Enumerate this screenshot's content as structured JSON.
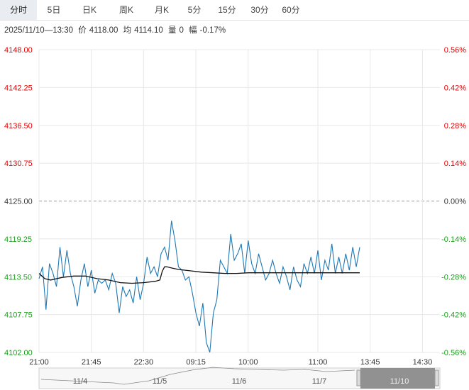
{
  "tabs": [
    {
      "label": "分时",
      "active": true
    },
    {
      "label": "5日",
      "active": false
    },
    {
      "label": "日K",
      "active": false
    },
    {
      "label": "周K",
      "active": false
    },
    {
      "label": "月K",
      "active": false
    },
    {
      "label": "5分",
      "active": false
    },
    {
      "label": "15分",
      "active": false
    },
    {
      "label": "30分",
      "active": false
    },
    {
      "label": "60分",
      "active": false
    }
  ],
  "info": {
    "datetime": "2025/11/10—13:30",
    "price_label": "价",
    "price": "4118.00",
    "avg_label": "均",
    "avg": "4114.10",
    "vol_label": "量",
    "vol": "0",
    "change_label": "幅",
    "change": "-0.17%"
  },
  "colors": {
    "up": "#e60000",
    "down": "#1a9e1a",
    "price_line": "#1f78b4",
    "avg_line": "#111111",
    "grid": "#e8e8e8",
    "base_line": "#999999"
  },
  "chart_data": {
    "type": "line",
    "title": "",
    "ylim": [
      4102.0,
      4148.0
    ],
    "base_price": 4125.0,
    "y_ticks_left": [
      "4148.00",
      "4142.25",
      "4136.50",
      "4130.75",
      "4125.00",
      "4119.25",
      "4113.50",
      "4107.75",
      "4102.00"
    ],
    "y_ticks_right": [
      "0.56%",
      "0.42%",
      "0.28%",
      "0.14%",
      "0.00%",
      "-0.14%",
      "-0.28%",
      "-0.42%",
      "-0.56%"
    ],
    "x_ticks": [
      "21:00",
      "21:45",
      "22:30",
      "09:15",
      "10:00",
      "11:00",
      "13:45",
      "14:30"
    ],
    "x_tick_index": [
      0,
      45,
      90,
      135,
      180,
      240,
      285,
      330
    ],
    "total_points": 345,
    "series": [
      {
        "kind": "price",
        "x": [
          0,
          3,
          6,
          9,
          12,
          15,
          18,
          21,
          24,
          27,
          30,
          33,
          36,
          39,
          42,
          45,
          48,
          51,
          54,
          57,
          60,
          63,
          66,
          69,
          72,
          75,
          78,
          81,
          84,
          87,
          90,
          93,
          96,
          99,
          102,
          105,
          108,
          111,
          114,
          117,
          120,
          123,
          126,
          129,
          132,
          135,
          138,
          141,
          144,
          147,
          150,
          153,
          156,
          159,
          162,
          165,
          168,
          171,
          174,
          177,
          180,
          183,
          186,
          189,
          192,
          195,
          198,
          201,
          204,
          207,
          210,
          213,
          216,
          219,
          222,
          225,
          228,
          231,
          234,
          237,
          240,
          243,
          246,
          249,
          252,
          255,
          258,
          261,
          264,
          267,
          270,
          273,
          276
        ],
        "values": [
          4113.2,
          4115.0,
          4108.5,
          4115.5,
          4114.0,
          4112.0,
          4118.0,
          4113.5,
          4117.5,
          4114.0,
          4112.0,
          4109.0,
          4113.0,
          4115.5,
          4112.0,
          4114.5,
          4111.0,
          4113.0,
          4112.5,
          4113.0,
          4111.5,
          4114.0,
          4112.5,
          4108.0,
          4112.0,
          4110.5,
          4111.5,
          4109.5,
          4113.5,
          4110.0,
          4112.5,
          4116.5,
          4114.0,
          4115.0,
          4113.5,
          4117.0,
          4118.0,
          4116.0,
          4122.0,
          4119.0,
          4115.0,
          4114.5,
          4113.0,
          4113.5,
          4111.0,
          4108.0,
          4106.0,
          4109.5,
          4103.5,
          4102.0,
          4108.0,
          4110.0,
          4116.0,
          4115.0,
          4114.0,
          4120.0,
          4116.0,
          4117.0,
          4118.5,
          4114.0,
          4119.0,
          4115.5,
          4114.0,
          4117.0,
          4115.0,
          4113.0,
          4114.0,
          4116.0,
          4114.0,
          4112.5,
          4115.0,
          4113.5,
          4111.5,
          4115.0,
          4113.0,
          4112.0,
          4115.5,
          4114.0,
          4116.5,
          4114.0,
          4117.5,
          4113.0,
          4116.0,
          4114.5,
          4118.5,
          4114.0,
          4116.5,
          4114.0,
          4117.0,
          4114.5,
          4118.0,
          4115.0,
          4118.0
        ]
      },
      {
        "kind": "avg",
        "x": [
          0,
          5,
          10,
          20,
          30,
          40,
          50,
          60,
          70,
          80,
          90,
          100,
          104,
          106,
          108,
          110,
          115,
          120,
          130,
          140,
          150,
          160,
          170,
          180,
          200,
          220,
          240,
          260,
          276
        ],
        "values": [
          4114.0,
          4113.2,
          4113.0,
          4113.4,
          4113.6,
          4113.6,
          4113.2,
          4113.0,
          4112.6,
          4112.5,
          4112.6,
          4112.8,
          4113.0,
          4114.3,
          4115.0,
          4115.0,
          4114.8,
          4114.6,
          4114.4,
          4114.2,
          4114.1,
          4114.0,
          4114.0,
          4114.1,
          4114.1,
          4114.1,
          4114.1,
          4114.1,
          4114.1
        ]
      }
    ]
  },
  "navigator": {
    "labels": [
      "11/4",
      "11/5",
      "11/6",
      "11/7",
      "11/10"
    ]
  }
}
